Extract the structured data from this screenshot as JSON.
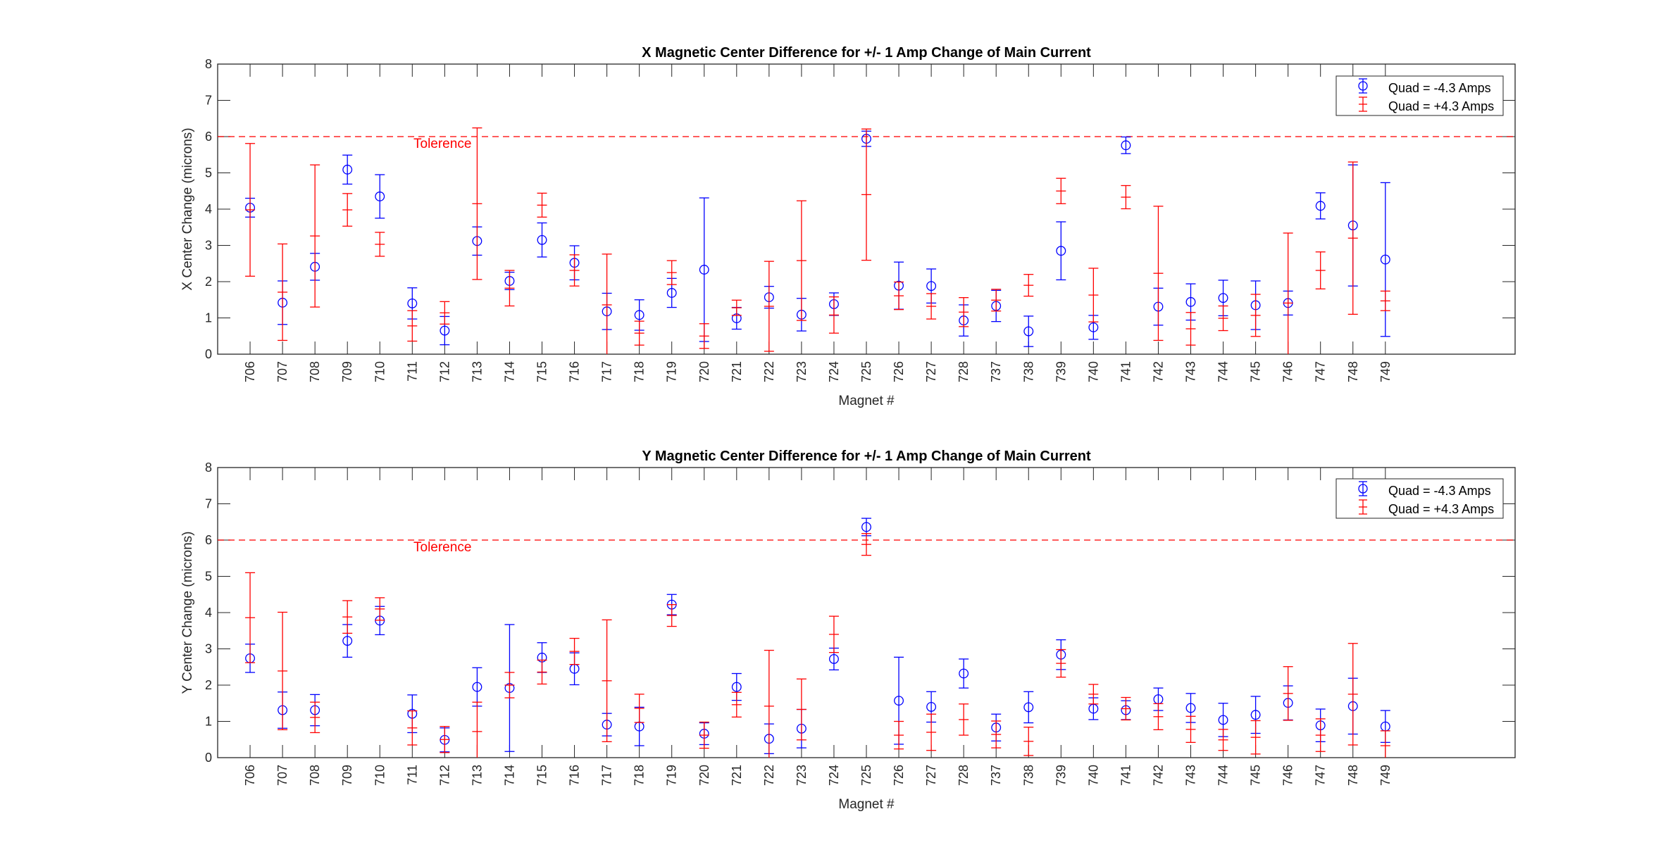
{
  "colors": {
    "minus": "#0000ff",
    "plus": "#ff0000",
    "tolerance": "#ff0000",
    "axis": "#262626"
  },
  "chart_data": [
    {
      "type": "scatter",
      "subtype": "errorbar",
      "title": "X Magnetic Center Difference for +/- 1 Amp Change of Main Current",
      "xlabel": "Magnet #",
      "ylabel": "X Center Change (microns)",
      "ylim": [
        0,
        8
      ],
      "yticks": [
        0,
        1,
        2,
        3,
        4,
        5,
        6,
        7,
        8
      ],
      "grid": false,
      "legend_position": "top-right",
      "tolerance": {
        "value": 6,
        "label": "Tolerence"
      },
      "categories": [
        "706",
        "707",
        "708",
        "709",
        "710",
        "711",
        "712",
        "713",
        "714",
        "715",
        "716",
        "717",
        "718",
        "719",
        "720",
        "721",
        "722",
        "723",
        "724",
        "725",
        "726",
        "727",
        "728",
        "737",
        "738",
        "739",
        "740",
        "741",
        "742",
        "743",
        "744",
        "745",
        "746",
        "747",
        "748",
        "749"
      ],
      "series": [
        {
          "name": "Quad = -4.3 Amps",
          "marker": "circle",
          "values": [
            4.04,
            1.42,
            2.41,
            5.09,
            4.35,
            1.4,
            0.65,
            3.12,
            2.02,
            3.15,
            2.52,
            1.18,
            1.08,
            1.69,
            2.33,
            0.99,
            1.57,
            1.09,
            1.38,
            5.94,
            1.89,
            1.88,
            0.93,
            1.33,
            0.63,
            2.85,
            0.74,
            5.76,
            1.31,
            1.44,
            1.55,
            1.35,
            1.41,
            4.09,
            3.55,
            2.61
          ],
          "errors": [
            0.26,
            0.6,
            0.37,
            0.4,
            0.6,
            0.43,
            0.39,
            0.39,
            0.24,
            0.47,
            0.47,
            0.5,
            0.42,
            0.4,
            1.98,
            0.3,
            0.3,
            0.45,
            0.31,
            0.21,
            0.65,
            0.47,
            0.43,
            0.43,
            0.42,
            0.8,
            0.33,
            0.23,
            0.51,
            0.5,
            0.49,
            0.67,
            0.33,
            0.36,
            1.67,
            2.12
          ]
        },
        {
          "name": "Quad = +4.3 Amps",
          "marker": "plus",
          "values": [
            3.98,
            1.71,
            3.26,
            3.98,
            3.03,
            0.78,
            1.14,
            4.15,
            1.82,
            4.11,
            2.31,
            1.36,
            0.58,
            2.25,
            0.5,
            1.28,
            1.32,
            2.58,
            1.08,
            4.4,
            1.61,
            1.32,
            1.16,
            1.49,
            1.9,
            4.5,
            1.63,
            4.33,
            2.23,
            0.7,
            0.99,
            1.07,
            1.41,
            2.31,
            3.2,
            1.47
          ],
          "errors": [
            1.83,
            1.33,
            1.96,
            0.45,
            0.33,
            0.42,
            0.31,
            2.09,
            0.49,
            0.33,
            0.43,
            1.4,
            0.33,
            0.33,
            0.34,
            0.21,
            1.24,
            1.65,
            0.5,
            1.81,
            0.38,
            0.35,
            0.4,
            0.3,
            0.3,
            0.35,
            0.74,
            0.32,
            1.85,
            0.45,
            0.34,
            0.58,
            1.93,
            0.51,
            2.1,
            0.27
          ]
        }
      ]
    },
    {
      "type": "scatter",
      "subtype": "errorbar",
      "title": "Y Magnetic Center Difference for +/- 1 Amp Change of Main Current",
      "xlabel": "Magnet #",
      "ylabel": "Y Center Change (microns)",
      "ylim": [
        0,
        8
      ],
      "yticks": [
        0,
        1,
        2,
        3,
        4,
        5,
        6,
        7,
        8
      ],
      "grid": false,
      "legend_position": "top-right",
      "tolerance": {
        "value": 6,
        "label": "Tolerence"
      },
      "categories": [
        "706",
        "707",
        "708",
        "709",
        "710",
        "711",
        "712",
        "713",
        "714",
        "715",
        "716",
        "717",
        "718",
        "719",
        "720",
        "721",
        "722",
        "723",
        "724",
        "725",
        "726",
        "727",
        "728",
        "737",
        "738",
        "739",
        "740",
        "741",
        "742",
        "743",
        "744",
        "745",
        "746",
        "747",
        "748",
        "749"
      ],
      "series": [
        {
          "name": "Quad = -4.3 Amps",
          "marker": "circle",
          "values": [
            2.74,
            1.31,
            1.31,
            3.22,
            3.78,
            1.21,
            0.49,
            1.95,
            1.92,
            2.76,
            2.45,
            0.91,
            0.86,
            4.22,
            0.66,
            1.95,
            0.52,
            0.8,
            2.72,
            6.36,
            1.57,
            1.4,
            2.32,
            0.83,
            1.39,
            2.84,
            1.35,
            1.31,
            1.61,
            1.37,
            1.04,
            1.18,
            1.51,
            0.89,
            1.42,
            0.86
          ],
          "errors": [
            0.39,
            0.5,
            0.43,
            0.45,
            0.39,
            0.52,
            0.33,
            0.53,
            1.75,
            0.41,
            0.44,
            0.31,
            0.53,
            0.28,
            0.3,
            0.37,
            0.41,
            0.53,
            0.3,
            0.24,
            1.2,
            0.42,
            0.4,
            0.37,
            0.43,
            0.41,
            0.3,
            0.26,
            0.31,
            0.4,
            0.46,
            0.51,
            0.47,
            0.45,
            0.77,
            0.44
          ]
        },
        {
          "name": "Quad = +4.3 Amps",
          "marker": "plus",
          "values": [
            3.86,
            2.39,
            1.11,
            3.88,
            4.1,
            0.82,
            0.5,
            0.72,
            2.0,
            2.36,
            2.93,
            2.12,
            1.36,
            3.92,
            0.62,
            1.46,
            1.42,
            1.33,
            3.4,
            5.88,
            0.62,
            0.7,
            1.05,
            0.64,
            0.45,
            2.6,
            1.75,
            1.35,
            1.13,
            0.78,
            0.49,
            0.56,
            1.77,
            0.62,
            1.75,
            0.33
          ],
          "errors": [
            1.24,
            1.62,
            0.42,
            0.45,
            0.31,
            0.47,
            0.36,
            0.81,
            0.35,
            0.33,
            0.36,
            1.68,
            0.39,
            0.3,
            0.36,
            0.34,
            1.54,
            0.84,
            0.5,
            0.3,
            0.38,
            0.5,
            0.43,
            0.37,
            0.39,
            0.38,
            0.27,
            0.31,
            0.36,
            0.36,
            0.29,
            0.46,
            0.74,
            0.45,
            1.4,
            0.41
          ]
        }
      ]
    }
  ]
}
